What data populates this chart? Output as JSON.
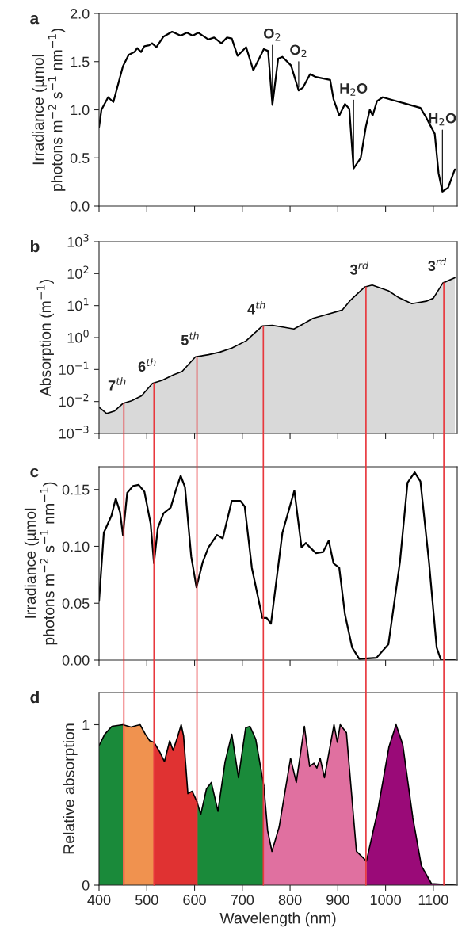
{
  "chart_data": [
    {
      "type": "line",
      "title": "a",
      "ylabel": "Irradiance (µmol\nphotons m$^{−2}$ s$^{−1}$ nm$^{−1}$)",
      "xlim": [
        400,
        1150
      ],
      "xticks": [
        400,
        500,
        600,
        700,
        800,
        900,
        1000,
        1100
      ],
      "ylim": [
        0,
        2
      ],
      "yticks": [
        {
          "value": 0,
          "label": "0.0"
        },
        {
          "value": 0.5,
          "label": "0.5"
        },
        {
          "value": 1,
          "label": "1.0"
        },
        {
          "value": 1.5,
          "label": "1.5"
        },
        {
          "value": 2,
          "label": "2.0"
        }
      ],
      "tick_labels": "y",
      "series": [
        {
          "color": "#000000",
          "x": [
            400,
            405,
            419,
            430,
            450,
            462,
            474,
            480,
            488,
            495,
            505,
            511,
            520,
            535,
            553,
            571,
            584,
            596,
            608,
            629,
            641,
            656,
            668,
            678,
            690,
            708,
            723,
            745,
            754,
            763,
            775,
            784,
            802,
            818,
            827,
            842,
            854,
            884,
            891,
            903,
            915,
            924,
            933,
            948,
            959,
            967,
            973,
            982,
            994,
            1073,
            1085,
            1103,
            1111,
            1119,
            1131,
            1145
          ],
          "values": [
            0.82,
            1.0,
            1.13,
            1.08,
            1.45,
            1.57,
            1.6,
            1.64,
            1.6,
            1.66,
            1.67,
            1.69,
            1.65,
            1.76,
            1.81,
            1.77,
            1.8,
            1.77,
            1.8,
            1.73,
            1.75,
            1.69,
            1.75,
            1.74,
            1.56,
            1.65,
            1.41,
            1.63,
            1.61,
            1.05,
            1.53,
            1.55,
            1.46,
            1.2,
            1.23,
            1.37,
            1.34,
            1.31,
            1.11,
            0.94,
            1.06,
            1.01,
            0.39,
            0.5,
            0.83,
            1.0,
            0.94,
            1.09,
            1.13,
            1.02,
            0.92,
            0.75,
            0.34,
            0.15,
            0.19,
            0.38
          ]
        }
      ],
      "annotations": [
        {
          "text": "O$_{2}$",
          "x": 763,
          "y": 1.05
        },
        {
          "text": "O$_{2}$",
          "x": 818,
          "y": 1.2
        },
        {
          "text": "H$_{2}$O",
          "x": 933,
          "y": 0.39
        },
        {
          "text": "H$_{2}$O",
          "x": 1119,
          "y": 0.15
        }
      ]
    },
    {
      "type": "area",
      "title": "b",
      "ylabel": "Absorption (m$^{−1}$)",
      "log": "y",
      "xlim": [
        400,
        1150
      ],
      "xticks": [
        400,
        500,
        600,
        700,
        800,
        900,
        1000,
        1100
      ],
      "ylim": [
        0.001,
        1000
      ],
      "yticks": [
        {
          "value": 0.001,
          "label": "10$^{−3}$"
        },
        {
          "value": 0.01,
          "label": "10$^{−2}$"
        },
        {
          "value": 0.1,
          "label": "10$^{−1}$"
        },
        {
          "value": 1,
          "label": "10$^{0}$"
        },
        {
          "value": 10,
          "label": "10$^{1}$"
        },
        {
          "value": 100,
          "label": "10$^{2}$"
        },
        {
          "value": 1000,
          "label": "10$^{3}$"
        }
      ],
      "tick_labels": "y",
      "series": [
        {
          "color": "#d9d9d9",
          "x": [
            400,
            416,
            432,
            450,
            468,
            489,
            512,
            532,
            556,
            574,
            602,
            629,
            653,
            678,
            708,
            742,
            763,
            787,
            808,
            824,
            848,
            872,
            909,
            927,
            956,
            972,
            1006,
            1027,
            1055,
            1085,
            1100,
            1120,
            1145
          ],
          "values": [
            0.0066,
            0.0042,
            0.005,
            0.0087,
            0.0105,
            0.015,
            0.037,
            0.046,
            0.068,
            0.087,
            0.25,
            0.29,
            0.35,
            0.47,
            0.79,
            2.3,
            2.4,
            2.1,
            1.85,
            2.5,
            4.0,
            5.0,
            7.2,
            15,
            38,
            44,
            29,
            18,
            11.5,
            13.7,
            17,
            51,
            74
          ]
        }
      ],
      "annotations": [
        {
          "text": "7$^{th}$",
          "x": 452,
          "y": 0.0095
        },
        {
          "text": "6$^{th}$",
          "x": 515,
          "y": 0.037
        },
        {
          "text": "5$^{th}$",
          "x": 605,
          "y": 0.25
        },
        {
          "text": "4$^{th}$",
          "x": 744,
          "y": 2.3
        },
        {
          "text": "3$^{rd}$",
          "x": 959,
          "y": 40
        },
        {
          "text": "3$^{rd}$",
          "x": 1122,
          "y": 52
        }
      ],
      "ref_lines": [
        {
          "axis": "x",
          "value": 452,
          "color": "#e8383d"
        },
        {
          "axis": "x",
          "value": 515,
          "color": "#e8383d"
        },
        {
          "axis": "x",
          "value": 605,
          "color": "#e8383d"
        },
        {
          "axis": "x",
          "value": 744,
          "color": "#e8383d"
        },
        {
          "axis": "x",
          "value": 959,
          "color": "#e8383d"
        },
        {
          "axis": "x",
          "value": 1122,
          "color": "#e8383d"
        }
      ]
    },
    {
      "type": "line",
      "title": "c",
      "ylabel": "Irradiance (µmol\nphotons m$^{−2}$ s$^{−1}$ nm$^{−1}$)",
      "xlim": [
        400,
        1150
      ],
      "xticks": [
        400,
        500,
        600,
        700,
        800,
        900,
        1000,
        1100
      ],
      "ylim": [
        0,
        0.17
      ],
      "yticks": [
        {
          "value": 0,
          "label": "0.00"
        },
        {
          "value": 0.05,
          "label": "0.05"
        },
        {
          "value": 0.1,
          "label": "0.10"
        },
        {
          "value": 0.15,
          "label": "0.15"
        }
      ],
      "tick_labels": "y",
      "series": [
        {
          "color": "#000000",
          "x": [
            400,
            410,
            426,
            435,
            444,
            450,
            459,
            471,
            483,
            495,
            508,
            515,
            523,
            535,
            550,
            562,
            571,
            580,
            593,
            604,
            617,
            629,
            647,
            659,
            678,
            696,
            705,
            720,
            733,
            742,
            751,
            760,
            784,
            809,
            824,
            833,
            842,
            854,
            869,
            881,
            891,
            903,
            915,
            930,
            945,
            981,
            1006,
            1030,
            1046,
            1061,
            1073,
            1091,
            1107,
            1116,
            1145
          ],
          "values": [
            0.052,
            0.112,
            0.127,
            0.142,
            0.13,
            0.11,
            0.147,
            0.153,
            0.154,
            0.148,
            0.12,
            0.085,
            0.116,
            0.129,
            0.134,
            0.151,
            0.162,
            0.152,
            0.091,
            0.064,
            0.086,
            0.099,
            0.11,
            0.107,
            0.14,
            0.14,
            0.135,
            0.081,
            0.055,
            0.037,
            0.037,
            0.032,
            0.112,
            0.149,
            0.099,
            0.103,
            0.099,
            0.094,
            0.095,
            0.105,
            0.085,
            0.081,
            0.04,
            0.011,
            0.001,
            0.002,
            0.014,
            0.086,
            0.156,
            0.165,
            0.157,
            0.086,
            0.011,
            0.0,
            0.0
          ]
        }
      ],
      "ref_lines": [
        {
          "axis": "x",
          "value": 452,
          "color": "#e8383d"
        },
        {
          "axis": "x",
          "value": 515,
          "color": "#e8383d"
        },
        {
          "axis": "x",
          "value": 605,
          "color": "#e8383d"
        },
        {
          "axis": "x",
          "value": 744,
          "color": "#e8383d"
        },
        {
          "axis": "x",
          "value": 959,
          "color": "#e8383d"
        },
        {
          "axis": "x",
          "value": 1122,
          "color": "#e8383d"
        }
      ]
    },
    {
      "type": "area",
      "title": "d",
      "xlabel": "Wavelength (nm)",
      "ylabel": "Relative absorption",
      "xlim": [
        400,
        1150
      ],
      "xticks": [
        400,
        500,
        600,
        700,
        800,
        900,
        1000,
        1100
      ],
      "ylim": [
        0,
        1.2
      ],
      "yticks": [
        0,
        1
      ],
      "series": [
        {
          "color": "#1a8a3a",
          "x": [
            400,
            412,
            427,
            450
          ],
          "values": [
            0.87,
            0.94,
            0.99,
            1.0
          ]
        },
        {
          "color": "#f0924f",
          "x": [
            450,
            467,
            479,
            486,
            497,
            506,
            515
          ],
          "values": [
            1.0,
            0.985,
            0.995,
            1.0,
            0.94,
            0.9,
            0.89
          ]
        },
        {
          "color": "#e03232",
          "x": [
            515,
            527,
            537,
            548,
            555,
            564,
            572,
            577,
            586,
            595,
            605
          ],
          "values": [
            0.89,
            0.83,
            0.77,
            0.9,
            0.84,
            0.92,
            1.0,
            0.93,
            0.57,
            0.585,
            0.52
          ]
        },
        {
          "color": "#1a8a3a",
          "x": [
            605,
            613,
            625,
            635,
            649,
            664,
            678,
            692,
            707,
            716,
            728,
            745
          ],
          "values": [
            0.52,
            0.44,
            0.6,
            0.64,
            0.46,
            0.77,
            0.94,
            0.67,
            0.98,
            0.99,
            0.91,
            0.62
          ]
        },
        {
          "color": "#e070a0",
          "x": [
            745,
            753,
            762,
            777,
            801,
            813,
            830,
            841,
            850,
            856,
            863,
            872,
            892,
            899,
            905,
            918,
            939,
            960
          ],
          "values": [
            0.62,
            0.34,
            0.21,
            0.36,
            0.79,
            0.64,
            0.99,
            0.74,
            0.76,
            0.73,
            0.79,
            0.67,
            1.0,
            0.89,
            1.0,
            0.95,
            0.21,
            0.15
          ]
        },
        {
          "color": "#9a0a78",
          "x": [
            960,
            984,
            1007,
            1022,
            1036,
            1057,
            1075,
            1096,
            1146
          ],
          "values": [
            0.15,
            0.47,
            0.86,
            1.0,
            0.875,
            0.42,
            0.12,
            0.01,
            0.0
          ]
        }
      ],
      "ref_lines": [
        {
          "axis": "x",
          "value": 452,
          "color": "#e8383d"
        },
        {
          "axis": "x",
          "value": 515,
          "color": "#e8383d"
        },
        {
          "axis": "x",
          "value": 605,
          "color": "#e8383d"
        },
        {
          "axis": "x",
          "value": 744,
          "color": "#e8383d"
        },
        {
          "axis": "x",
          "value": 959,
          "color": "#e8383d"
        },
        {
          "axis": "x",
          "value": 1122,
          "color": "#e8383d"
        }
      ]
    }
  ]
}
